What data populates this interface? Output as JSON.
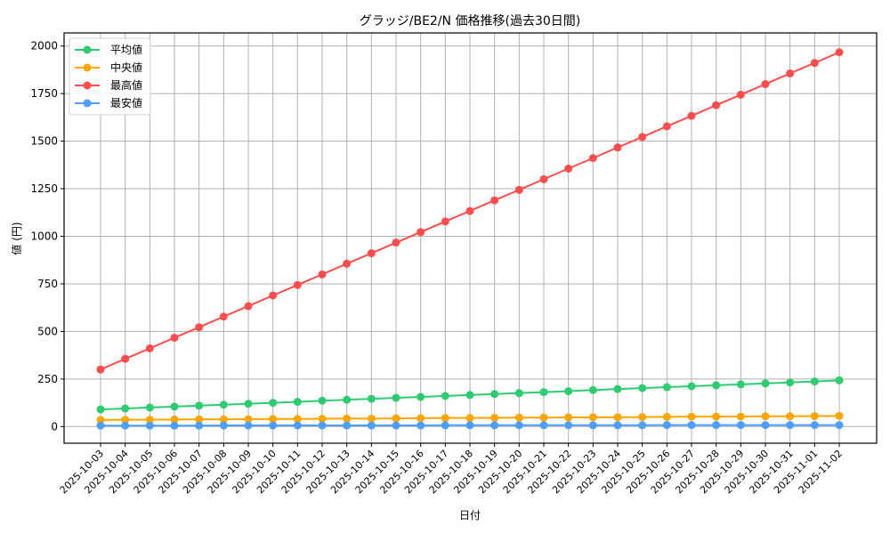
{
  "chart_data": {
    "type": "line",
    "title": "グラッジ/BE2/N 価格推移(過去30日間)",
    "xlabel": "日付",
    "ylabel": "値 (円)",
    "ylim": [
      -85,
      2070
    ],
    "yticks": [
      0,
      250,
      500,
      750,
      1000,
      1250,
      1500,
      1750,
      2000
    ],
    "grid": true,
    "legend_position": "upper left",
    "categories": [
      "2025-10-03",
      "2025-10-04",
      "2025-10-05",
      "2025-10-06",
      "2025-10-07",
      "2025-10-08",
      "2025-10-09",
      "2025-10-10",
      "2025-10-11",
      "2025-10-12",
      "2025-10-13",
      "2025-10-14",
      "2025-10-15",
      "2025-10-16",
      "2025-10-17",
      "2025-10-18",
      "2025-10-19",
      "2025-10-20",
      "2025-10-21",
      "2025-10-22",
      "2025-10-23",
      "2025-10-24",
      "2025-10-25",
      "2025-10-26",
      "2025-10-27",
      "2025-10-28",
      "2025-10-29",
      "2025-10-30",
      "2025-10-31",
      "2025-11-01",
      "2025-11-02"
    ],
    "series": [
      {
        "name": "平均値",
        "color": "#2ecc71",
        "values": [
          90,
          95,
          100,
          105,
          110,
          115,
          120,
          125,
          130,
          136,
          141,
          146,
          151,
          156,
          161,
          166,
          171,
          176,
          181,
          186,
          192,
          197,
          202,
          207,
          212,
          217,
          222,
          227,
          232,
          237,
          243
        ]
      },
      {
        "name": "中央値",
        "color": "#ffa500",
        "values": [
          35,
          36,
          36,
          37,
          38,
          38,
          39,
          40,
          40,
          41,
          42,
          42,
          43,
          44,
          45,
          45,
          46,
          47,
          47,
          48,
          49,
          49,
          50,
          51,
          52,
          52,
          53,
          54,
          54,
          55,
          56
        ]
      },
      {
        "name": "最高値",
        "color": "#ff4d4d",
        "values": [
          300,
          356,
          411,
          467,
          522,
          578,
          633,
          689,
          744,
          800,
          856,
          911,
          967,
          1022,
          1078,
          1133,
          1189,
          1244,
          1300,
          1356,
          1411,
          1467,
          1522,
          1578,
          1633,
          1689,
          1744,
          1800,
          1856,
          1911,
          1967
        ]
      },
      {
        "name": "最安値",
        "color": "#4d9fff",
        "values": [
          5,
          5,
          5,
          5,
          5,
          6,
          6,
          6,
          6,
          6,
          6,
          6,
          6,
          6,
          7,
          7,
          7,
          7,
          7,
          7,
          7,
          7,
          7,
          8,
          8,
          8,
          8,
          8,
          8,
          8,
          8
        ]
      }
    ]
  }
}
